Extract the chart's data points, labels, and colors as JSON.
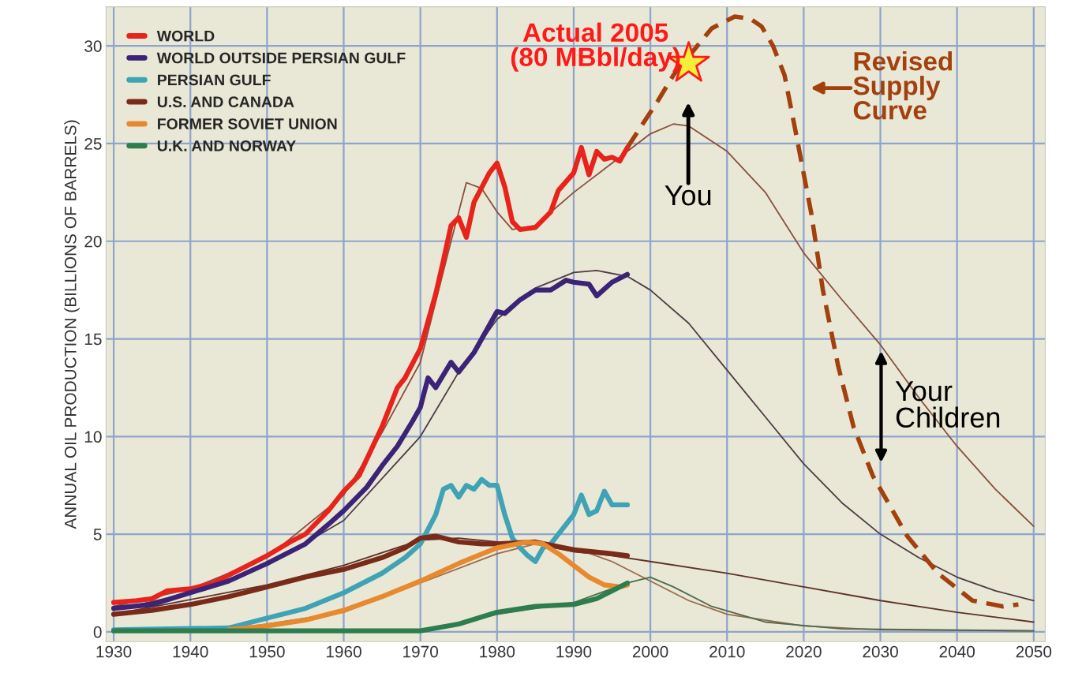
{
  "chart_data": {
    "type": "line",
    "ylabel": "ANNUAL OIL PRODUCTION (BILLIONS OF BARRELS)",
    "xlim": [
      1929,
      2051.5
    ],
    "xticks": [
      1930,
      1940,
      1950,
      1960,
      1970,
      1980,
      1990,
      2000,
      2010,
      2020,
      2030,
      2040,
      2050
    ],
    "ylim": [
      -0.5,
      32
    ],
    "yticks": [
      0,
      5,
      10,
      15,
      20,
      25,
      30
    ],
    "grid": true,
    "legend": "top left",
    "series": [
      {
        "name": "WORLD",
        "color": "#e8231c",
        "x": [
          1930,
          1933,
          1935,
          1937,
          1940,
          1943,
          1945,
          1948,
          1950,
          1953,
          1955,
          1958,
          1960,
          1962,
          1965,
          1967,
          1968,
          1970,
          1972,
          1973,
          1974,
          1975,
          1976,
          1977,
          1979,
          1980,
          1981,
          1982,
          1983,
          1985,
          1987,
          1988,
          1990,
          1991,
          1992,
          1993,
          1994,
          1995,
          1996,
          1997
        ],
        "values": [
          1.5,
          1.6,
          1.7,
          2.1,
          2.2,
          2.5,
          2.9,
          3.5,
          3.9,
          4.6,
          5.0,
          6.2,
          7.2,
          8.0,
          10.5,
          12.5,
          13.0,
          14.5,
          17.3,
          19.0,
          20.8,
          21.2,
          20.2,
          22.0,
          23.5,
          24.0,
          22.8,
          21.0,
          20.6,
          20.7,
          21.5,
          22.6,
          23.5,
          24.8,
          23.4,
          24.6,
          24.2,
          24.3,
          24.1,
          24.8
        ]
      },
      {
        "name": "WORLD OUTSIDE PERSIAN GULF",
        "color": "#3b2377",
        "x": [
          1930,
          1935,
          1940,
          1945,
          1950,
          1955,
          1958,
          1960,
          1963,
          1965,
          1967,
          1969,
          1970,
          1971,
          1972,
          1974,
          1975,
          1977,
          1980,
          1981,
          1983,
          1985,
          1987,
          1989,
          1990,
          1992,
          1993,
          1995,
          1997
        ],
        "values": [
          1.2,
          1.4,
          2.0,
          2.6,
          3.5,
          4.5,
          5.5,
          6.2,
          7.4,
          8.5,
          9.5,
          10.8,
          11.5,
          13.0,
          12.5,
          13.8,
          13.3,
          14.3,
          16.4,
          16.3,
          17.0,
          17.5,
          17.5,
          18.0,
          17.9,
          17.8,
          17.2,
          17.9,
          18.3
        ]
      },
      {
        "name": "PERSIAN GULF",
        "color": "#3fa3b5",
        "x": [
          1930,
          1945,
          1950,
          1955,
          1960,
          1965,
          1968,
          1970,
          1972,
          1973,
          1974,
          1975,
          1976,
          1977,
          1978,
          1979,
          1980,
          1981,
          1982,
          1983,
          1984,
          1985,
          1986,
          1987,
          1988,
          1989,
          1990,
          1991,
          1992,
          1993,
          1994,
          1995,
          1997
        ],
        "values": [
          0.1,
          0.2,
          0.7,
          1.2,
          2.0,
          3.0,
          3.8,
          4.5,
          6.0,
          7.3,
          7.5,
          6.9,
          7.5,
          7.3,
          7.8,
          7.5,
          7.5,
          6.0,
          4.8,
          4.3,
          3.9,
          3.6,
          4.3,
          4.5,
          5.0,
          5.5,
          6.0,
          7.0,
          6.0,
          6.2,
          7.2,
          6.5,
          6.5
        ]
      },
      {
        "name": "U.S. AND CANADA",
        "color": "#7a2a18",
        "x": [
          1930,
          1935,
          1940,
          1945,
          1950,
          1955,
          1960,
          1965,
          1968,
          1970,
          1972,
          1975,
          1978,
          1980,
          1985,
          1990,
          1995,
          1997
        ],
        "values": [
          0.9,
          1.1,
          1.4,
          1.8,
          2.3,
          2.8,
          3.2,
          3.8,
          4.3,
          4.8,
          4.9,
          4.6,
          4.5,
          4.5,
          4.6,
          4.2,
          4.0,
          3.9
        ]
      },
      {
        "name": "FORMER SOVIET UNION",
        "color": "#e8892e",
        "x": [
          1945,
          1950,
          1955,
          1960,
          1965,
          1970,
          1975,
          1980,
          1984,
          1986,
          1988,
          1990,
          1992,
          1994,
          1996,
          1997
        ],
        "values": [
          0.1,
          0.3,
          0.6,
          1.1,
          1.8,
          2.6,
          3.5,
          4.3,
          4.6,
          4.5,
          4.0,
          3.4,
          2.8,
          2.4,
          2.3,
          2.4
        ]
      },
      {
        "name": "U.K. AND NORWAY",
        "color": "#2e7d4f",
        "x": [
          1930,
          1970,
          1975,
          1980,
          1985,
          1990,
          1993,
          1995,
          1997
        ],
        "values": [
          0.05,
          0.05,
          0.4,
          1.0,
          1.3,
          1.4,
          1.7,
          2.1,
          2.5
        ]
      },
      {
        "color": "#8a4e3c",
        "x": [
          1930,
          1940,
          1950,
          1960,
          1965,
          1970,
          1974,
          1976,
          1978,
          1980,
          1982,
          1985,
          1990,
          1995,
          2000,
          2003,
          2005,
          2010,
          2015,
          2020,
          2025,
          2030,
          2035,
          2040,
          2045,
          2050
        ],
        "values": [
          1.3,
          2.2,
          3.8,
          7.0,
          10.2,
          13.8,
          20.0,
          23.0,
          22.7,
          21.5,
          20.6,
          20.8,
          22.5,
          24.0,
          25.5,
          26.0,
          25.9,
          24.6,
          22.5,
          19.4,
          17.0,
          14.7,
          12.0,
          9.5,
          7.3,
          5.4
        ]
      },
      {
        "color": "#4f3a44",
        "x": [
          1930,
          1940,
          1950,
          1960,
          1970,
          1975,
          1980,
          1985,
          1990,
          1993,
          1997,
          2000,
          2005,
          2010,
          2015,
          2020,
          2025,
          2030,
          2035,
          2040,
          2045,
          2050
        ],
        "values": [
          1.1,
          2.0,
          3.4,
          5.7,
          10.0,
          13.3,
          16.0,
          17.6,
          18.4,
          18.5,
          18.2,
          17.5,
          15.8,
          13.4,
          11.0,
          8.6,
          6.6,
          5.0,
          3.8,
          2.8,
          2.1,
          1.6
        ]
      },
      {
        "color": "#5e3028",
        "x": [
          1930,
          1950,
          1960,
          1970,
          1975,
          1980,
          1985,
          1990,
          1995,
          2000,
          2010,
          2020,
          2030,
          2040,
          2050
        ],
        "values": [
          0.9,
          2.4,
          3.4,
          4.7,
          4.8,
          4.6,
          4.5,
          4.1,
          3.9,
          3.6,
          3.0,
          2.3,
          1.6,
          1.0,
          0.5
        ]
      },
      {
        "color": "#9a6a48",
        "x": [
          1945,
          1960,
          1970,
          1980,
          1985,
          1990,
          1995,
          2000,
          2005,
          2010,
          2020,
          2030,
          2050
        ],
        "values": [
          0.1,
          1.0,
          2.5,
          4.0,
          4.5,
          4.3,
          3.6,
          2.6,
          1.6,
          0.9,
          0.3,
          0.1,
          0.05
        ]
      },
      {
        "color": "#4e6a50",
        "x": [
          1970,
          1980,
          1990,
          1997,
          2000,
          2003,
          2008,
          2015,
          2025,
          2050
        ],
        "values": [
          0.05,
          0.9,
          1.5,
          2.5,
          2.8,
          2.3,
          1.3,
          0.5,
          0.15,
          0.05
        ]
      },
      {
        "color": "#a3410e",
        "line_style": "dashed",
        "x": [
          1997,
          2001,
          2003,
          2008,
          2011,
          2013,
          2014.5,
          2016,
          2017.5,
          2019,
          2021,
          2022.5,
          2024.5,
          2026.5,
          2029,
          2033.5,
          2037.5,
          2042,
          2046,
          2048
        ],
        "values": [
          24.8,
          27.2,
          28.5,
          30.9,
          31.5,
          31.4,
          31.0,
          30.0,
          28.5,
          25.5,
          21.4,
          17.5,
          13.6,
          10.5,
          8.0,
          4.9,
          3.0,
          1.6,
          1.3,
          1.4
        ]
      },
      {
        "type": "scatter",
        "marker": "star",
        "color": "#f5ef3a",
        "x": [
          2005
        ],
        "values": [
          29.1
        ]
      }
    ],
    "annotations": [
      {
        "text": "Actual 2005\n(80 MBbl/day)",
        "x": 2005,
        "y": 29.1
      },
      "You",
      "Revised\nSupply\nCurve",
      "Your\nChildren"
    ]
  }
}
